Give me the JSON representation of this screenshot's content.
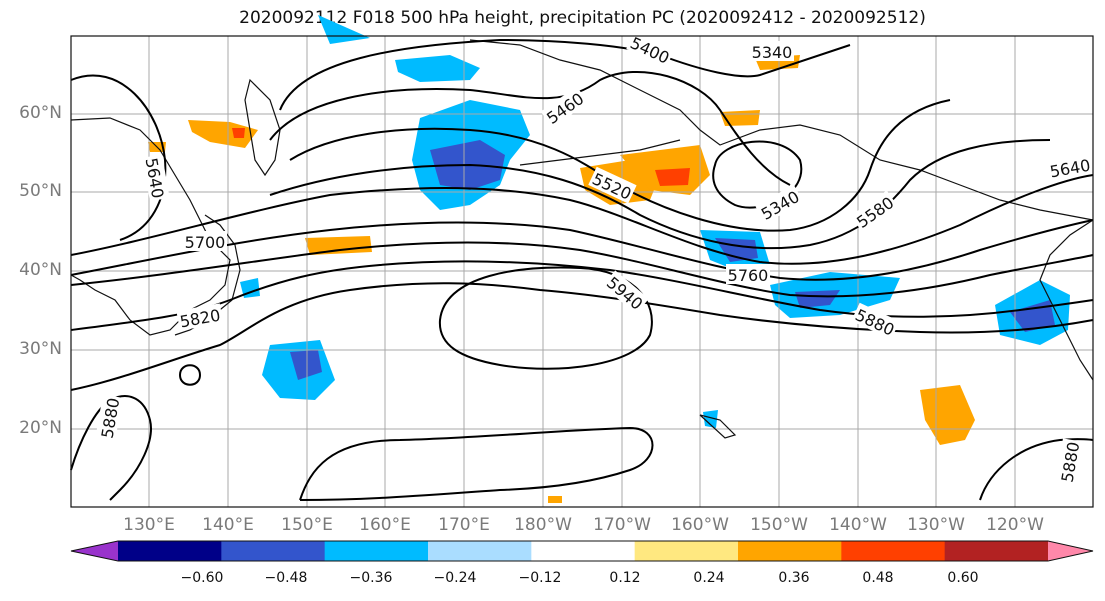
{
  "title": "2020092112 F018 500 hPa height, precipitation PC (2020092412 - 2020092512)",
  "lat_labels": [
    "60°N",
    "50°N",
    "40°N",
    "30°N",
    "20°N"
  ],
  "lon_labels": [
    "130°E",
    "140°E",
    "150°E",
    "160°E",
    "170°E",
    "180°W",
    "170°W",
    "160°W",
    "150°W",
    "140°W",
    "130°W",
    "120°W"
  ],
  "contour_labels": [
    "5340",
    "5400",
    "5460",
    "5520",
    "5340",
    "5580",
    "5640",
    "5640",
    "5700",
    "5760",
    "5820",
    "5880",
    "5940",
    "5880",
    "5880"
  ],
  "colorbar": {
    "ticks": [
      "−0.60",
      "−0.48",
      "−0.36",
      "−0.24",
      "−0.12",
      "0.12",
      "0.24",
      "0.36",
      "0.48",
      "0.60"
    ],
    "colors": [
      "#9933cc",
      "#000088",
      "#3355cc",
      "#00bbff",
      "#aaddff",
      "#ffffff",
      "#ffe880",
      "#ffa500",
      "#ff4000",
      "#b22222",
      "#ff88aa"
    ]
  }
}
